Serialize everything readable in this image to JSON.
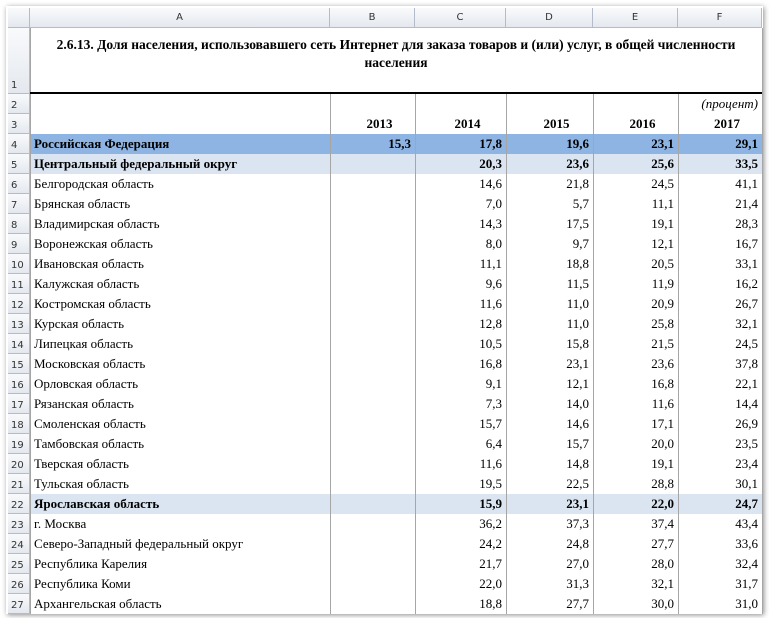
{
  "columns": [
    "A",
    "B",
    "C",
    "D",
    "E",
    "F"
  ],
  "row_numbers": [
    1,
    2,
    3,
    4,
    5,
    6,
    7,
    8,
    9,
    10,
    11,
    12,
    13,
    14,
    15,
    16,
    17,
    18,
    19,
    20,
    21,
    22,
    23,
    24,
    25,
    26,
    27
  ],
  "title": "2.6.13. Доля населения, использовавшего сеть Интернет для заказа товаров и (или) услуг, в общей численности населения",
  "unit": "(процент)",
  "years": [
    2013,
    2014,
    2015,
    2016,
    2017
  ],
  "rows": [
    {
      "label": "Российская Федерация",
      "cells": [
        "15,3",
        "17,8",
        "19,6",
        "23,1",
        "29,1"
      ]
    },
    {
      "label": "Центральный федеральный округ",
      "cells": [
        null,
        "20,3",
        "23,6",
        "25,6",
        "33,5"
      ]
    },
    {
      "label": "Белгородская область",
      "cells": [
        null,
        "14,6",
        "21,8",
        "24,5",
        "41,1"
      ]
    },
    {
      "label": "Брянская область",
      "cells": [
        null,
        "7,0",
        "5,7",
        "11,1",
        "21,4"
      ]
    },
    {
      "label": "Владимирская область",
      "cells": [
        null,
        "14,3",
        "17,5",
        "19,1",
        "28,3"
      ]
    },
    {
      "label": "Воронежская область",
      "cells": [
        null,
        "8,0",
        "9,7",
        "12,1",
        "16,7"
      ]
    },
    {
      "label": "Ивановская область",
      "cells": [
        null,
        "11,1",
        "18,8",
        "20,5",
        "33,1"
      ]
    },
    {
      "label": "Калужская область",
      "cells": [
        null,
        "9,6",
        "11,5",
        "11,9",
        "16,2"
      ]
    },
    {
      "label": "Костромская область",
      "cells": [
        null,
        "11,6",
        "11,0",
        "20,9",
        "26,7"
      ]
    },
    {
      "label": "Курская область",
      "cells": [
        null,
        "12,8",
        "11,0",
        "25,8",
        "32,1"
      ]
    },
    {
      "label": "Липецкая область",
      "cells": [
        null,
        "10,5",
        "15,8",
        "21,5",
        "24,5"
      ]
    },
    {
      "label": "Московская область",
      "cells": [
        null,
        "16,8",
        "23,1",
        "23,6",
        "37,8"
      ]
    },
    {
      "label": "Орловская область",
      "cells": [
        null,
        "9,1",
        "12,1",
        "16,8",
        "22,1"
      ]
    },
    {
      "label": "Рязанская область",
      "cells": [
        null,
        "7,3",
        "14,0",
        "11,6",
        "14,4"
      ]
    },
    {
      "label": "Смоленская область",
      "cells": [
        null,
        "15,7",
        "14,6",
        "17,1",
        "26,9"
      ]
    },
    {
      "label": "Тамбовская область",
      "cells": [
        null,
        "6,4",
        "15,7",
        "20,0",
        "23,5"
      ]
    },
    {
      "label": "Тверская область",
      "cells": [
        null,
        "11,6",
        "14,8",
        "19,1",
        "23,4"
      ]
    },
    {
      "label": "Тульская область",
      "cells": [
        null,
        "19,5",
        "22,5",
        "28,8",
        "30,1"
      ]
    },
    {
      "label": "Ярославская область",
      "cells": [
        null,
        "15,9",
        "23,1",
        "22,0",
        "24,7"
      ]
    },
    {
      "label": "г. Москва",
      "cells": [
        null,
        "36,2",
        "37,3",
        "37,4",
        "43,4"
      ]
    },
    {
      "label": "Северо-Западный федеральный округ",
      "cells": [
        null,
        "24,2",
        "24,8",
        "27,7",
        "33,6"
      ]
    },
    {
      "label": "Республика Карелия",
      "cells": [
        null,
        "21,7",
        "27,0",
        "28,0",
        "32,4"
      ]
    },
    {
      "label": "Республика Коми",
      "cells": [
        null,
        "22,0",
        "31,3",
        "32,1",
        "31,7"
      ]
    },
    {
      "label": "Архангельская область",
      "cells": [
        null,
        "18,8",
        "27,7",
        "30,0",
        "31,0"
      ]
    }
  ]
}
